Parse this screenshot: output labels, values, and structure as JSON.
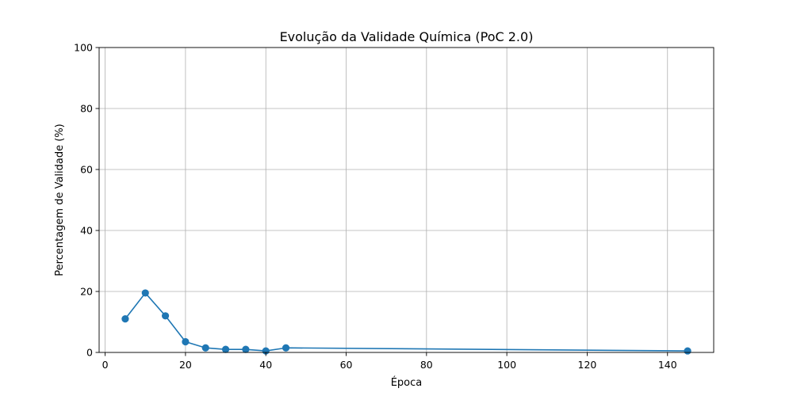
{
  "chart_data": {
    "type": "line",
    "title": "Evolução da Validade Química (PoC 2.0)",
    "xlabel": "Época",
    "ylabel": "Percentagem de Validade (%)",
    "xlim": [
      -1.5,
      151.5
    ],
    "ylim": [
      0,
      100
    ],
    "xticks": [
      0,
      20,
      40,
      60,
      80,
      100,
      120,
      140
    ],
    "yticks": [
      0,
      20,
      40,
      60,
      80,
      100
    ],
    "grid": true,
    "colors": {
      "line": "#1f77b4",
      "grid": "#b0b0b0",
      "axis": "#000000"
    },
    "series": [
      {
        "x": [
          5,
          10,
          15,
          20,
          25,
          30,
          35,
          40,
          45,
          145
        ],
        "y": [
          11,
          19.5,
          12,
          3.5,
          1.5,
          1,
          1,
          0.5,
          1.5,
          0.5
        ]
      }
    ]
  }
}
